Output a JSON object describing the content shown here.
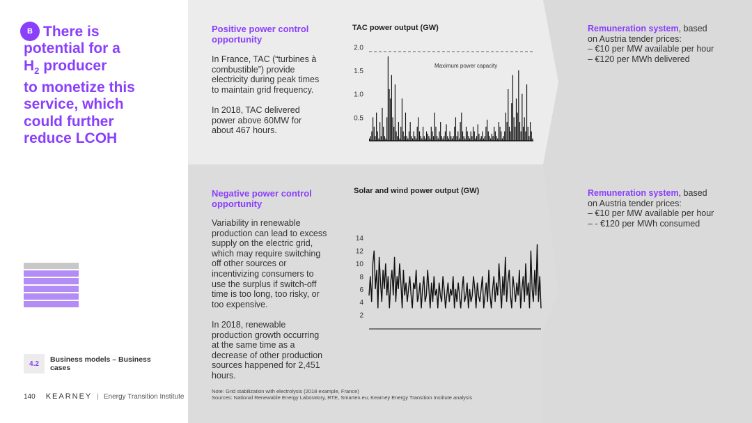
{
  "badge": "B",
  "headline": {
    "line1": "There is",
    "line2": "potential for a",
    "line3_pre": "H",
    "line3_sub": "2",
    "line3_post": " producer",
    "line4": "to monetize this",
    "line5": "service, which",
    "line6": "could further",
    "line7": "reduce LCOH"
  },
  "positive": {
    "title_l1": "Positive power control",
    "title_l2": "opportunity",
    "p1": [
      "In France, TAC (“turbines à",
      "combustible”) provide",
      "electricity during peak times",
      "to maintain grid frequency."
    ],
    "p2": [
      "In 2018, TAC delivered",
      "power above 60MW for",
      "about 467 hours."
    ]
  },
  "negative": {
    "title_l1": "Negative power control",
    "title_l2": "opportunity",
    "p1": [
      "Variability in renewable",
      "production can lead to excess",
      "supply on the electric grid,",
      "which may require switching",
      "off other sources or",
      "incentivizing consumers to",
      "use the surplus if switch-off",
      "time is too long, too risky, or",
      "too expensive."
    ],
    "p2": [
      "In 2018, renewable",
      "production growth occurring",
      "at the same time as a",
      "decrease of other production",
      "sources happened for 2,451",
      "hours."
    ]
  },
  "remun_top": {
    "title": "Remuneration system",
    "rest": ", based",
    "l2": "on Austria tender prices:",
    "l3": "– €10 per MW available per hour",
    "l4": "– €120 per MWh delivered"
  },
  "remun_bottom": {
    "title": "Remuneration system",
    "rest": ", based",
    "l2": "on Austria tender prices:",
    "l3": "– €10 per MW available per hour",
    "l4": "– - €120 per MWh consumed"
  },
  "chart_data": [
    {
      "type": "bar",
      "title": "TAC power output (GW)",
      "annotation": "Maximum power capacity",
      "capacity_line": 1.9,
      "yticks": [
        "2.0",
        "1.5",
        "1.0",
        "0.5"
      ],
      "ylim": [
        0,
        2.05
      ],
      "values": [
        0.05,
        0.1,
        0.2,
        0.5,
        0.3,
        0.1,
        0.6,
        0.2,
        0.05,
        0.4,
        0.1,
        0.7,
        0.3,
        0.1,
        0.05,
        0.5,
        1.8,
        1.1,
        0.9,
        1.4,
        0.5,
        0.3,
        1.2,
        0.2,
        0.1,
        0.4,
        0.05,
        0.3,
        0.9,
        0.2,
        0.1,
        0.6,
        0.1,
        0.05,
        0.2,
        0.4,
        0.1,
        0.05,
        0.2,
        0.1,
        0.05,
        0.3,
        0.5,
        0.2,
        0.1,
        0.05,
        0.3,
        0.1,
        0.05,
        0.2,
        0.15,
        0.1,
        0.05,
        0.3,
        0.2,
        0.1,
        0.6,
        0.3,
        0.1,
        0.05,
        0.2,
        0.4,
        0.1,
        0.05,
        0.1,
        0.2,
        0.35,
        0.1,
        0.05,
        0.2,
        0.1,
        0.05,
        0.1,
        0.3,
        0.5,
        0.1,
        0.2,
        0.05,
        0.4,
        0.6,
        0.2,
        0.1,
        0.05,
        0.3,
        0.2,
        0.1,
        0.05,
        0.2,
        0.1,
        0.3,
        0.2,
        0.05,
        0.1,
        0.35,
        0.15,
        0.05,
        0.1,
        0.2,
        0.05,
        0.1,
        0.3,
        0.45,
        0.2,
        0.1,
        0.05,
        0.15,
        0.1,
        0.3,
        0.2,
        0.1,
        0.05,
        0.4,
        0.3,
        0.2,
        0.05,
        0.1,
        0.2,
        0.6,
        0.4,
        1.1,
        0.3,
        0.2,
        0.8,
        1.4,
        0.5,
        0.3,
        0.9,
        0.6,
        1.5,
        0.4,
        0.2,
        1.0,
        0.3,
        0.5,
        0.2,
        1.2,
        0.3,
        0.1,
        0.4,
        0.2,
        0.05
      ]
    },
    {
      "type": "line",
      "title": "Solar and wind power output (GW)",
      "yticks": [
        "14",
        "12",
        "10",
        "8",
        "6",
        "4",
        "2"
      ],
      "ylim": [
        0,
        15
      ],
      "values": [
        5,
        8,
        4,
        10,
        12,
        6,
        9,
        3,
        11,
        7,
        4,
        9,
        6,
        10,
        5,
        8,
        3,
        7,
        9,
        5,
        11,
        4,
        8,
        6,
        10,
        7,
        3,
        9,
        5,
        7,
        4,
        6,
        8,
        5,
        3,
        7,
        6,
        9,
        4,
        5,
        7,
        3,
        6,
        8,
        4,
        5,
        9,
        6,
        3,
        7,
        4,
        8,
        5,
        6,
        3,
        7,
        5,
        4,
        8,
        6,
        3,
        5,
        7,
        4,
        6,
        5,
        8,
        3,
        6,
        4,
        7,
        5,
        3,
        6,
        8,
        4,
        5,
        7,
        3,
        6,
        4,
        5,
        8,
        6,
        3,
        7,
        5,
        4,
        6,
        8,
        3,
        5,
        7,
        4,
        9,
        5,
        3,
        6,
        8,
        4,
        7,
        5,
        10,
        6,
        3,
        8,
        5,
        11,
        4,
        7,
        9,
        5,
        3,
        8,
        6,
        4,
        7,
        5,
        9,
        3,
        6,
        8,
        4,
        10,
        5,
        7,
        3,
        12,
        6,
        4,
        9,
        5,
        13,
        4,
        8,
        3
      ]
    }
  ],
  "section": {
    "num": "4.2",
    "label": "Business models – Business cases"
  },
  "footer": {
    "page": "140",
    "brand": "KEARNEY",
    "sep": "|",
    "eti": "Energy Transition Institute"
  },
  "note": {
    "l1": "Note: Grid stabilization with electrolysis (2018 example, France)",
    "l2": "Sources: National Renewable Energy Laboratory, RTE, Smarten.eu; Kearney Energy Transition Institute analysis"
  }
}
